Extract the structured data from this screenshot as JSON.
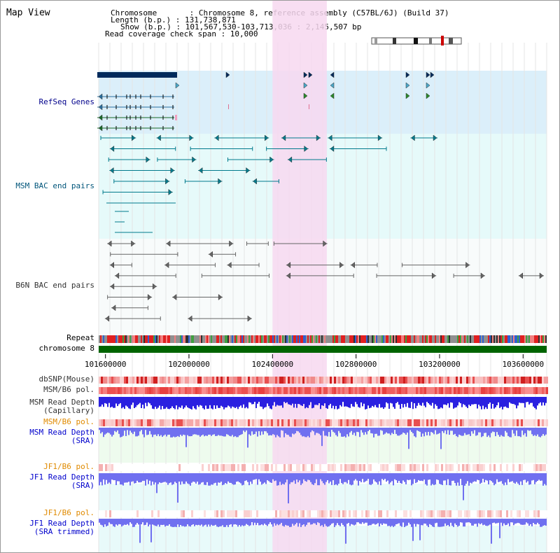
{
  "header": {
    "title": "Map View",
    "info_lines": [
      "Chromosome       : Chromosome 8, reference assembly (C57BL/6J) (Build 37)",
      "Length (b.p.) : 131,738,871",
      "Show (b.p.) : 101,567,530-103,713,036 : 2,145,507 bp",
      "Read coverage check span : 10,000"
    ]
  },
  "tracks": {
    "refseq": "RefSeq Genes",
    "msm_bac": "MSM BAC end pairs",
    "b6n_bac": "B6N BAC end pairs",
    "repeat": "Repeat",
    "chromosome": "chromosome 8",
    "dbsnp": "dbSNP(Mouse)",
    "msm_b6_pol_a": "MSM/B6 pol.",
    "msm_depth_cap_1": "MSM Read Depth",
    "msm_depth_cap_2": "(Capillary)",
    "msm_b6_pol_b": "MSM/B6 pol.",
    "msm_depth_sra_1": "MSM Read Depth",
    "msm_depth_sra_2": "(SRA)",
    "jf1_b6_pol_a": "JF1/B6 pol.",
    "jf1_depth_sra_1": "JF1 Read Depth",
    "jf1_depth_sra_2": "(SRA)",
    "jf1_b6_pol_b": "JF1/B6 pol.",
    "jf1_depth_tr_1": "JF1 Read Depth",
    "jf1_depth_tr_2": "(SRA trimmed)"
  },
  "axis": {
    "ticks": [
      "101600000",
      "102000000",
      "102400000",
      "102800000",
      "103200000",
      "103600000"
    ],
    "tick_values": [
      101600000,
      102000000,
      102400000,
      102800000,
      103200000,
      103600000
    ],
    "range": [
      101567530,
      103713036
    ]
  },
  "selection": {
    "start": 102400000,
    "end": 102660000
  },
  "colors": {
    "highlight": "#f7d8f0",
    "refseq_bg": "#dbeffa",
    "bac_bg": "#e6fafa",
    "navy": "#002a5c",
    "teal": "#007a8c",
    "gray": "#666666",
    "green": "#006400",
    "depth_capillary": "#2a20e0",
    "depth_sra": "#7070f0"
  }
}
